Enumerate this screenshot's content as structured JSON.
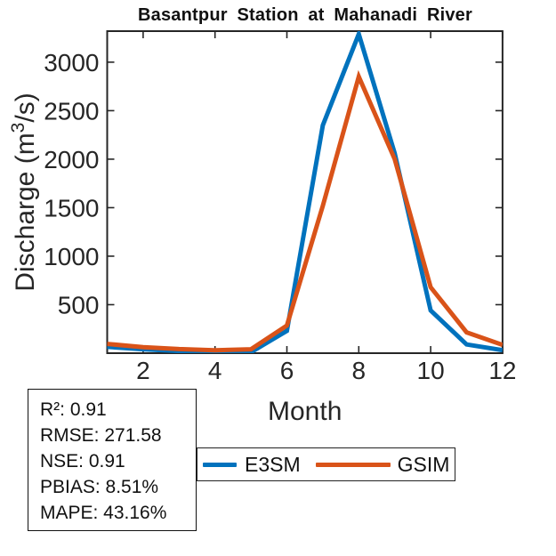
{
  "chart_data": {
    "type": "line",
    "title": "Basantpur Station at Mahanadi River",
    "xlabel": "Month",
    "ylabel": "Discharge (m³/s)",
    "ylabel_parts": {
      "prefix": "Discharge (m",
      "sup": "3",
      "suffix": "/s)"
    },
    "x": [
      1,
      2,
      3,
      4,
      5,
      6,
      7,
      8,
      9,
      10,
      11,
      12
    ],
    "series": [
      {
        "name": "E3SM",
        "color": "#0072BD",
        "values": [
          65,
          40,
          22,
          12,
          10,
          230,
          2350,
          3290,
          2060,
          440,
          90,
          30
        ]
      },
      {
        "name": "GSIM",
        "color": "#D95319",
        "values": [
          95,
          62,
          42,
          30,
          40,
          285,
          1520,
          2850,
          2000,
          680,
          215,
          85
        ]
      }
    ],
    "xticks": [
      2,
      4,
      6,
      8,
      10,
      12
    ],
    "yticks": [
      500,
      1000,
      1500,
      2000,
      2500,
      3000
    ],
    "xlim": [
      1,
      12
    ],
    "ylim": [
      0,
      3320
    ],
    "grid": false,
    "legend_position": "bottom-outside",
    "axis_color": "#262626",
    "line_width": 5
  },
  "stats": {
    "lines": [
      "R²: 0.91",
      "RMSE: 271.58",
      "NSE: 0.91",
      "PBIAS: 8.51%",
      "MAPE: 43.16%"
    ]
  }
}
